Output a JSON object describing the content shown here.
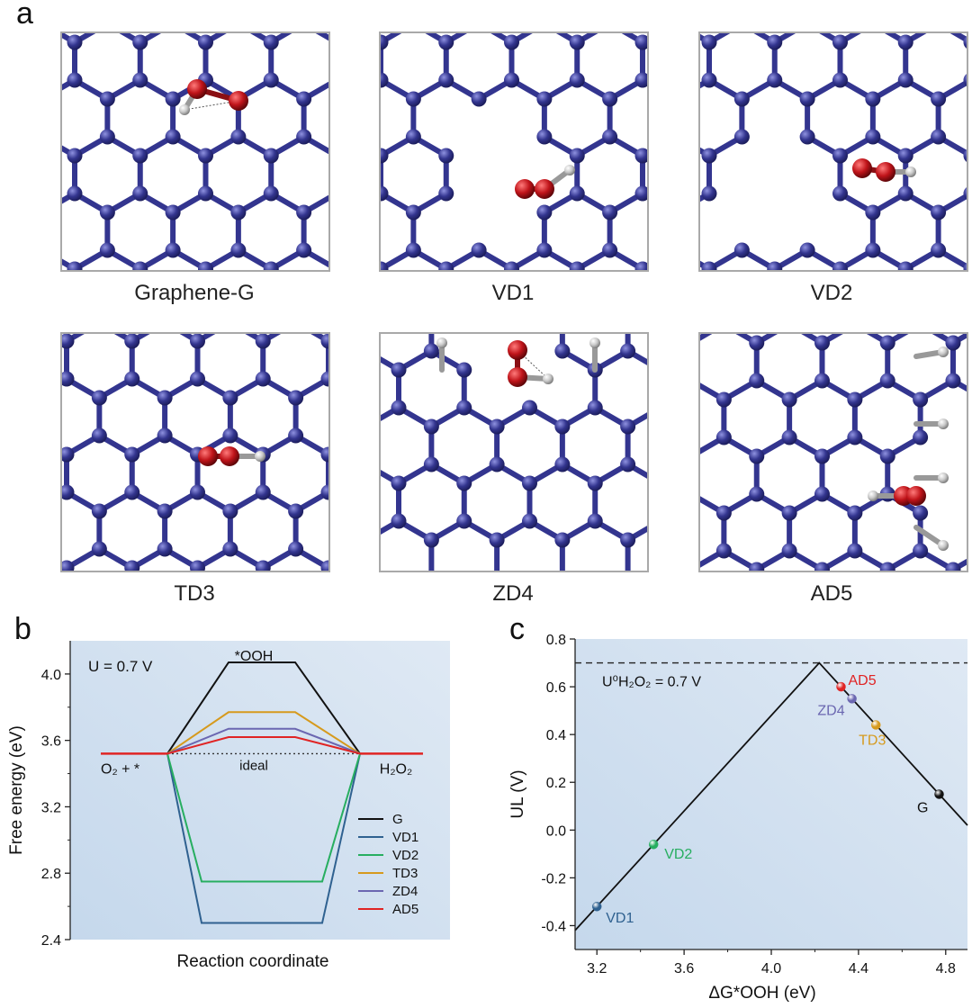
{
  "panel_a": {
    "letter": "a",
    "structures": [
      {
        "id": "graphene-g",
        "label": "Graphene-G"
      },
      {
        "id": "vd1",
        "label": "VD1"
      },
      {
        "id": "vd2",
        "label": "VD2"
      },
      {
        "id": "td3",
        "label": "TD3"
      },
      {
        "id": "zd4",
        "label": "ZD4"
      },
      {
        "id": "ad5",
        "label": "AD5"
      }
    ]
  },
  "colors": {
    "carbon": "#33358f",
    "oxygen": "#c0141a",
    "hydrogen": "#c8c8c8",
    "plot_bg_light": "#dfe9f4",
    "plot_bg_dark": "#c5d8ec",
    "G": "#111111",
    "VD1": "#2f6190",
    "VD2": "#27ae60",
    "TD3": "#d69a1d",
    "ZD4": "#6b67b1",
    "AD5": "#e02424"
  },
  "chart_data": [
    {
      "panel": "b",
      "type": "line",
      "title": "",
      "annotation": "U = 0.7 V",
      "xlabel": "Reaction coordinate",
      "ylabel": "Free energy (eV)",
      "ylim": [
        2.4,
        4.2
      ],
      "yticks": [
        2.4,
        2.8,
        3.2,
        3.6,
        4.0
      ],
      "ytick_labels": [
        "2.4",
        "2.8",
        "3.2",
        "3.6",
        "4.0"
      ],
      "states": [
        "O₂ + *",
        "*OOH",
        "H₂O₂"
      ],
      "ideal_label": "ideal",
      "ideal_value": 3.52,
      "series": [
        {
          "name": "G",
          "values": [
            3.52,
            4.07,
            3.52
          ]
        },
        {
          "name": "VD1",
          "values": [
            3.52,
            2.5,
            3.52
          ]
        },
        {
          "name": "VD2",
          "values": [
            3.52,
            2.75,
            3.52
          ]
        },
        {
          "name": "TD3",
          "values": [
            3.52,
            3.77,
            3.52
          ]
        },
        {
          "name": "ZD4",
          "values": [
            3.52,
            3.67,
            3.52
          ]
        },
        {
          "name": "AD5",
          "values": [
            3.52,
            3.62,
            3.52
          ]
        }
      ],
      "legend_position": "bottom-right",
      "grid": false
    },
    {
      "panel": "c",
      "type": "scatter",
      "title": "",
      "xlabel": "ΔG*OOH (eV)",
      "ylabel": "UL (V)",
      "xlim": [
        3.1,
        4.9
      ],
      "ylim": [
        -0.5,
        0.8
      ],
      "xticks": [
        3.2,
        3.6,
        4.0,
        4.4,
        4.8
      ],
      "xtick_labels": [
        "3.2",
        "3.6",
        "4.0",
        "4.4",
        "4.8"
      ],
      "yticks": [
        -0.4,
        -0.2,
        0.0,
        0.2,
        0.4,
        0.6,
        0.8
      ],
      "ytick_labels": [
        "-0.4",
        "-0.2",
        "0.0",
        "0.2",
        "0.4",
        "0.6",
        "0.8"
      ],
      "equilibrium_label": "U⁰H₂O₂ = 0.7 V",
      "equilibrium_value": 0.7,
      "volcano": {
        "apex_x": 4.22,
        "apex_y": 0.7
      },
      "points": [
        {
          "name": "VD1",
          "x": 3.2,
          "y": -0.32
        },
        {
          "name": "VD2",
          "x": 3.46,
          "y": -0.06
        },
        {
          "name": "AD5",
          "x": 4.32,
          "y": 0.6
        },
        {
          "name": "ZD4",
          "x": 4.37,
          "y": 0.55
        },
        {
          "name": "TD3",
          "x": 4.48,
          "y": 0.44
        },
        {
          "name": "G",
          "x": 4.77,
          "y": 0.15
        }
      ],
      "grid": false
    }
  ]
}
